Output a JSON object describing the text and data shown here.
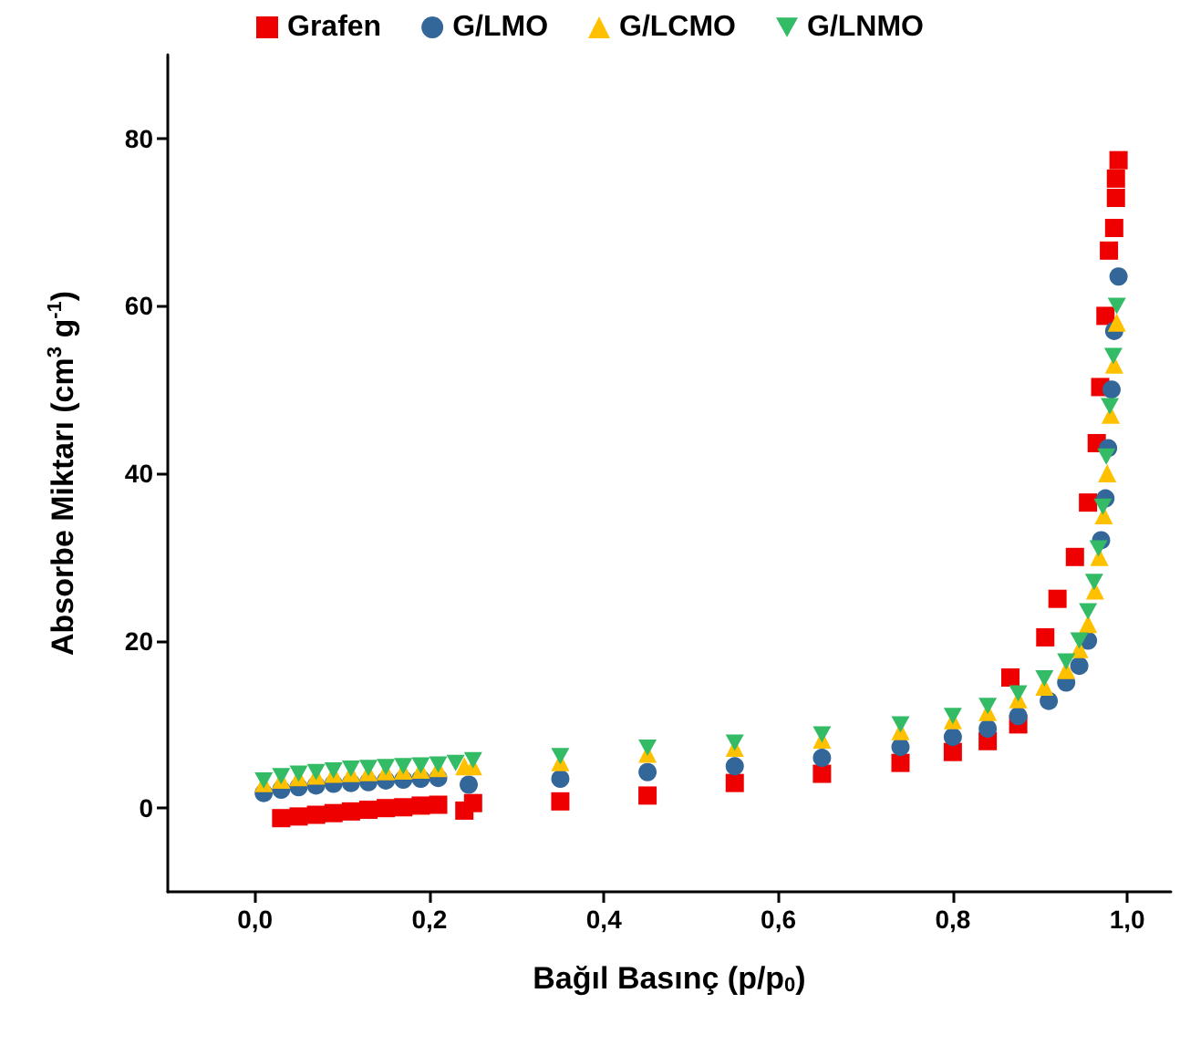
{
  "chart_data": {
    "type": "scatter",
    "xlabel": "Bağıl Basınç (p/p$_{0}$)",
    "ylabel": "Absorbe Miktarı (cm$^{3}$ g$^{-1}$)",
    "xlim": [
      -0.1,
      1.05
    ],
    "xticks": [
      {
        "value": 0,
        "label": "0,0"
      },
      {
        "value": 0.2,
        "label": "0,2"
      },
      {
        "value": 0.4,
        "label": "0,4"
      },
      {
        "value": 0.6,
        "label": "0,6"
      },
      {
        "value": 0.8,
        "label": "0,8"
      },
      {
        "value": 1.0,
        "label": "1,0"
      }
    ],
    "ylim": [
      -10,
      90
    ],
    "yticks": [
      0,
      20,
      40,
      60,
      80
    ],
    "grid": false,
    "legend": "top",
    "series": [
      {
        "name": "Grafen",
        "color": "#ee0000",
        "marker": "square",
        "x": [
          0.03,
          0.05,
          0.07,
          0.09,
          0.11,
          0.13,
          0.15,
          0.17,
          0.19,
          0.21,
          0.24,
          0.25,
          0.35,
          0.45,
          0.55,
          0.65,
          0.74,
          0.8,
          0.84,
          0.875,
          0.866,
          0.906,
          0.92,
          0.94,
          0.955,
          0.965,
          0.969,
          0.975,
          0.979,
          0.985,
          0.987,
          0.987,
          0.99
        ],
        "values": [
          -1.2,
          -1,
          -0.8,
          -0.6,
          -0.4,
          -0.2,
          0,
          0.1,
          0.3,
          0.4,
          -0.3,
          0.6,
          0.8,
          1.5,
          3,
          4.1,
          5.4,
          6.7,
          8,
          10,
          15.6,
          20.4,
          25,
          30,
          36.5,
          43.6,
          50.3,
          58.8,
          66.6,
          69.3,
          72.9,
          75.2,
          77.4
        ]
      },
      {
        "name": "G/LMO",
        "color": "#336699",
        "marker": "circle",
        "x": [
          0.01,
          0.03,
          0.05,
          0.07,
          0.09,
          0.11,
          0.13,
          0.15,
          0.17,
          0.19,
          0.21,
          0.24,
          0.245,
          0.35,
          0.45,
          0.55,
          0.65,
          0.74,
          0.8,
          0.84,
          0.875,
          0.91,
          0.93,
          0.945,
          0.955,
          0.96,
          0.965,
          0.97,
          0.975,
          0.978,
          0.982,
          0.985,
          0.99
        ],
        "values": [
          1.8,
          2.2,
          2.5,
          2.7,
          2.9,
          3.0,
          3.1,
          3.3,
          3.4,
          3.5,
          3.6,
          null,
          2.8,
          3.5,
          4.3,
          5,
          6,
          7.3,
          8.5,
          9.5,
          11,
          12.8,
          15,
          17,
          20,
          null,
          null,
          32,
          37,
          43,
          50,
          57,
          63.5
        ]
      },
      {
        "name": "G/LCMO",
        "color": "#ffc000",
        "marker": "triangle",
        "x": [
          0.01,
          0.03,
          0.05,
          0.07,
          0.09,
          0.11,
          0.13,
          0.15,
          0.17,
          0.19,
          0.21,
          0.24,
          0.25,
          0.35,
          0.45,
          0.55,
          0.65,
          0.74,
          0.8,
          0.84,
          0.875,
          0.905,
          0.93,
          0.945,
          0.955,
          0.963,
          0.968,
          0.973,
          0.977,
          0.981,
          0.985,
          0.988
        ],
        "values": [
          3.0,
          3.4,
          3.7,
          3.9,
          4.1,
          4.2,
          4.3,
          4.4,
          4.5,
          4.6,
          4.8,
          5.0,
          5.0,
          5.5,
          6.5,
          7.2,
          8.2,
          9.2,
          10.5,
          11.5,
          13,
          14.5,
          16.5,
          19,
          22,
          26,
          30,
          35,
          40,
          47,
          53,
          58
        ]
      },
      {
        "name": "G/LNMO",
        "color": "#33bb66",
        "marker": "triangle-down",
        "x": [
          0.01,
          0.03,
          0.05,
          0.07,
          0.09,
          0.11,
          0.13,
          0.15,
          0.17,
          0.19,
          0.21,
          0.23,
          0.245,
          0.25,
          0.35,
          0.45,
          0.55,
          0.65,
          0.74,
          0.8,
          0.84,
          0.875,
          0.905,
          0.93,
          0.945,
          0.955,
          0.962,
          0.967,
          0.972,
          0.976,
          0.98,
          0.984,
          0.988
        ],
        "values": [
          3.3,
          3.8,
          4.1,
          4.3,
          4.5,
          4.7,
          4.8,
          4.9,
          5.0,
          5.1,
          5.2,
          5.4,
          null,
          5.7,
          6.2,
          7.2,
          7.8,
          8.8,
          10,
          11,
          12.2,
          13.7,
          15.5,
          17.5,
          20,
          23.5,
          27,
          31,
          36,
          42,
          48,
          54,
          60
        ]
      }
    ]
  }
}
